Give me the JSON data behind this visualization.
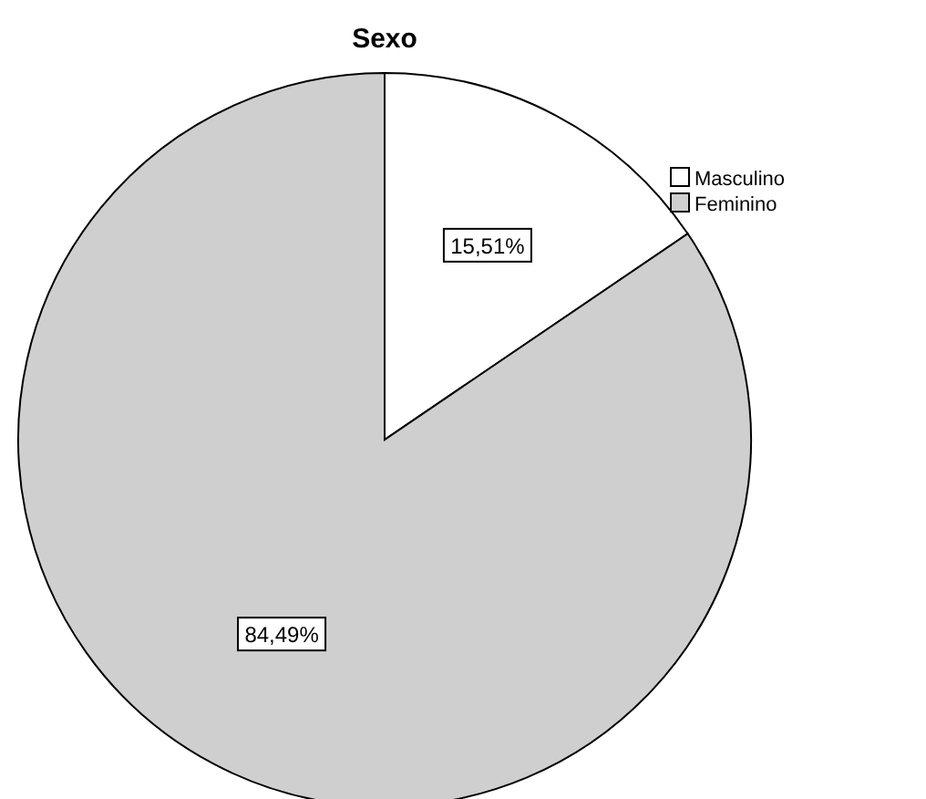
{
  "chart_data": {
    "type": "pie",
    "title": "Sexo",
    "categories": [
      "Masculino",
      "Feminino"
    ],
    "values": [
      15.51,
      84.49
    ],
    "colors": [
      "#ffffff",
      "#cfcfcf"
    ],
    "value_labels": [
      "15,51%",
      "84,49%"
    ],
    "legend": "top right"
  }
}
